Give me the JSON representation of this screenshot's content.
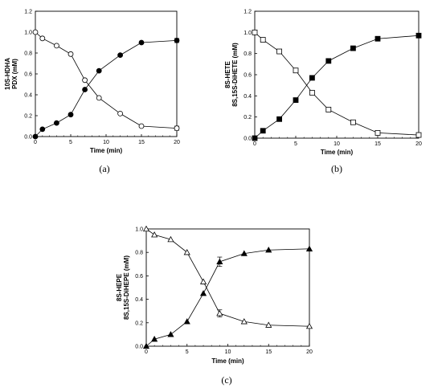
{
  "chart_data": [
    {
      "type": "line",
      "panel_label": "(a)",
      "xlabel": "Time (min)",
      "ylabel_lines": [
        "10S-HDHA",
        "PDX (mM)"
      ],
      "xlim": [
        0,
        20
      ],
      "ylim": [
        0,
        1.2
      ],
      "xticks": [
        "0",
        "5",
        "10",
        "15",
        "20"
      ],
      "yticks": [
        "0.0",
        "0.2",
        "0.4",
        "0.6",
        "0.8",
        "1.0",
        "1.2"
      ],
      "grid": false,
      "series": [
        {
          "marker": "open-circle",
          "x": [
            0,
            1,
            3,
            5,
            7,
            9,
            12,
            15,
            20
          ],
          "y": [
            1.0,
            0.94,
            0.87,
            0.79,
            0.54,
            0.37,
            0.22,
            0.1,
            0.08
          ],
          "err": [
            0,
            0,
            0,
            0,
            0,
            0,
            0,
            0,
            0.02
          ]
        },
        {
          "marker": "filled-circle",
          "x": [
            0,
            1,
            3,
            5,
            7,
            9,
            12,
            15,
            20
          ],
          "y": [
            0.0,
            0.07,
            0.13,
            0.21,
            0.45,
            0.63,
            0.78,
            0.9,
            0.92
          ],
          "err": [
            0,
            0,
            0,
            0,
            0,
            0,
            0,
            0,
            0.02
          ]
        }
      ]
    },
    {
      "type": "line",
      "panel_label": "(b)",
      "xlabel": "Time (min)",
      "ylabel_lines": [
        "8S-HETE",
        "8S,15S-DiHETE (mM)"
      ],
      "xlim": [
        0,
        20
      ],
      "ylim": [
        0,
        1.2
      ],
      "xticks": [
        "0",
        "5",
        "10",
        "15",
        "20"
      ],
      "yticks": [
        "0.0",
        "0.2",
        "0.4",
        "0.6",
        "0.8",
        "1.0",
        "1.2"
      ],
      "grid": false,
      "series": [
        {
          "marker": "open-square",
          "x": [
            0,
            1,
            3,
            5,
            7,
            9,
            12,
            15,
            20
          ],
          "y": [
            1.0,
            0.93,
            0.82,
            0.64,
            0.43,
            0.27,
            0.15,
            0.05,
            0.03
          ],
          "err": [
            0,
            0,
            0,
            0,
            0,
            0,
            0,
            0,
            0
          ]
        },
        {
          "marker": "filled-square",
          "x": [
            0,
            1,
            3,
            5,
            7,
            9,
            12,
            15,
            20
          ],
          "y": [
            0.0,
            0.07,
            0.18,
            0.36,
            0.57,
            0.73,
            0.85,
            0.94,
            0.97
          ],
          "err": [
            0,
            0,
            0,
            0,
            0,
            0,
            0,
            0,
            0
          ]
        }
      ]
    },
    {
      "type": "line",
      "panel_label": "(c)",
      "xlabel": "Time (min)",
      "ylabel_lines": [
        "8S-HEPE",
        "8S,15S-DiHEPE (mM)"
      ],
      "xlim": [
        0,
        20
      ],
      "ylim": [
        0,
        1.0
      ],
      "xticks": [
        "0",
        "5",
        "10",
        "15",
        "20"
      ],
      "yticks": [
        "0.0",
        "0.2",
        "0.4",
        "0.6",
        "0.8",
        "1.0"
      ],
      "grid": false,
      "series": [
        {
          "marker": "open-triangle",
          "x": [
            0,
            1,
            3,
            5,
            7,
            9,
            12,
            15,
            20
          ],
          "y": [
            1.0,
            0.95,
            0.91,
            0.8,
            0.55,
            0.28,
            0.21,
            0.18,
            0.17
          ],
          "err": [
            0,
            0,
            0,
            0,
            0,
            0.03,
            0,
            0,
            0
          ]
        },
        {
          "marker": "filled-triangle",
          "x": [
            0,
            1,
            3,
            5,
            7,
            9,
            12,
            15,
            20
          ],
          "y": [
            0.0,
            0.06,
            0.1,
            0.21,
            0.45,
            0.72,
            0.79,
            0.82,
            0.83
          ],
          "err": [
            0,
            0,
            0,
            0,
            0,
            0.04,
            0,
            0,
            0
          ]
        }
      ]
    }
  ]
}
